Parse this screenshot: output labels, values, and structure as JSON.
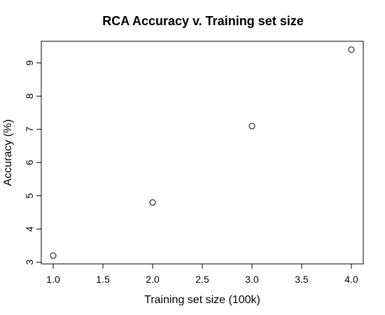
{
  "chart_data": {
    "type": "scatter",
    "title": "RCA Accuracy v. Training set size",
    "xlabel": "Training set size  (100k)",
    "ylabel": "Accuracy (%)",
    "x": [
      1.0,
      2.0,
      3.0,
      4.0
    ],
    "y": [
      3.2,
      4.8,
      7.1,
      9.4
    ],
    "xlim": [
      0.88,
      4.12
    ],
    "ylim": [
      2.95,
      9.65
    ],
    "xticks": [
      "1.0",
      "1.5",
      "2.0",
      "2.5",
      "3.0",
      "3.5",
      "4.0"
    ],
    "yticks": [
      "3",
      "4",
      "5",
      "6",
      "7",
      "8",
      "9"
    ],
    "marker": "open-circle",
    "grid": false,
    "legend": "none",
    "colors": {
      "marker": "#000000",
      "axis": "#000000"
    }
  }
}
